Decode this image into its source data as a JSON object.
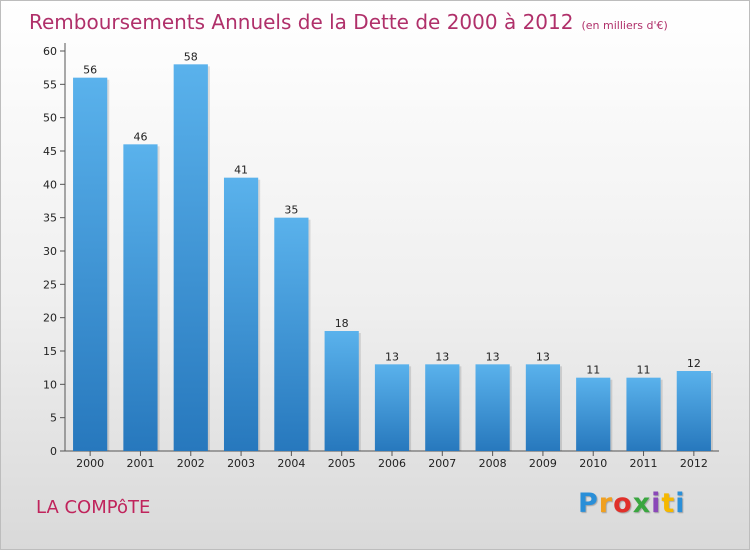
{
  "chart_data": {
    "type": "bar",
    "title": "Remboursements Annuels de la Dette de 2000 à 2012",
    "subtitle": "(en milliers d'€)",
    "xlabel": "",
    "ylabel": "",
    "categories": [
      "2000",
      "2001",
      "2002",
      "2003",
      "2004",
      "2005",
      "2006",
      "2007",
      "2008",
      "2009",
      "2010",
      "2011",
      "2012"
    ],
    "values": [
      56,
      46,
      58,
      41,
      35,
      18,
      13,
      13,
      13,
      13,
      11,
      11,
      12
    ],
    "ylim": [
      0,
      60
    ],
    "yticks": [
      0,
      5,
      10,
      15,
      20,
      25,
      30,
      35,
      40,
      45,
      50,
      55,
      60
    ],
    "grid": false,
    "bar_color": "#3a9ae0",
    "title_color": "#b0306a"
  },
  "footer": {
    "commune": "LA COMPôTE",
    "logo_letters": [
      "P",
      "r",
      "o",
      "x",
      "i",
      "t",
      "i"
    ]
  }
}
